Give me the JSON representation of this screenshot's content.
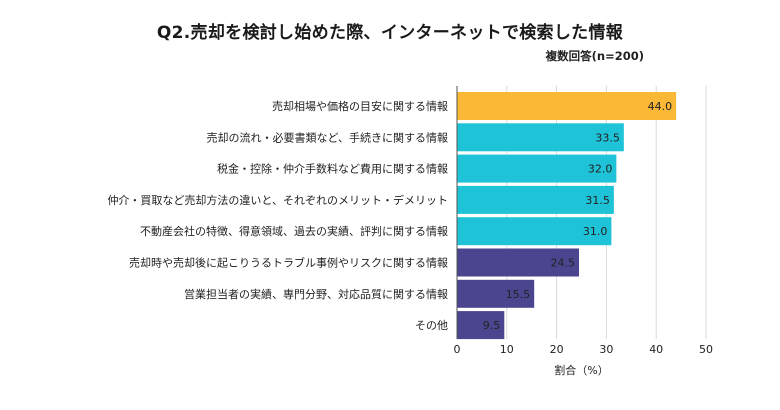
{
  "header": {
    "title": "Q2.売却を検討し始めた際、インターネットで検索した情報",
    "subtitle": "複数回答(n=200)"
  },
  "colors": {
    "highlight": "#fbb736",
    "mid": "#1ec3d8",
    "low": "#4b4590",
    "grid": "#d9d9d9",
    "axis": "#555555"
  },
  "chart_data": {
    "type": "bar",
    "orientation": "horizontal",
    "categories": [
      "売却相場や価格の目安に関する情報",
      "売却の流れ・必要書類など、手続きに関する情報",
      "税金・控除・仲介手数料など費用に関する情報",
      "仲介・買取など売却方法の違いと、それぞれのメリット・デメリット",
      "不動産会社の特徴、得意領域、過去の実績、評判に関する情報",
      "売却時や売却後に起こりうるトラブル事例やリスクに関する情報",
      "営業担当者の実績、専門分野、対応品質に関する情報",
      "その他"
    ],
    "values": [
      44.0,
      33.5,
      32.0,
      31.5,
      31.0,
      24.5,
      15.5,
      9.5
    ],
    "value_labels": [
      "44.0",
      "33.5",
      "32.0",
      "31.5",
      "31.0",
      "24.5",
      "15.5",
      "9.5"
    ],
    "bar_colors": [
      "#fbb736",
      "#1ec3d8",
      "#1ec3d8",
      "#1ec3d8",
      "#1ec3d8",
      "#4b4590",
      "#4b4590",
      "#4b4590"
    ],
    "xlabel": "割合（%）",
    "xlim": [
      0,
      50
    ],
    "xticks": [
      "0",
      "10",
      "20",
      "30",
      "40",
      "50"
    ],
    "grid": true
  }
}
